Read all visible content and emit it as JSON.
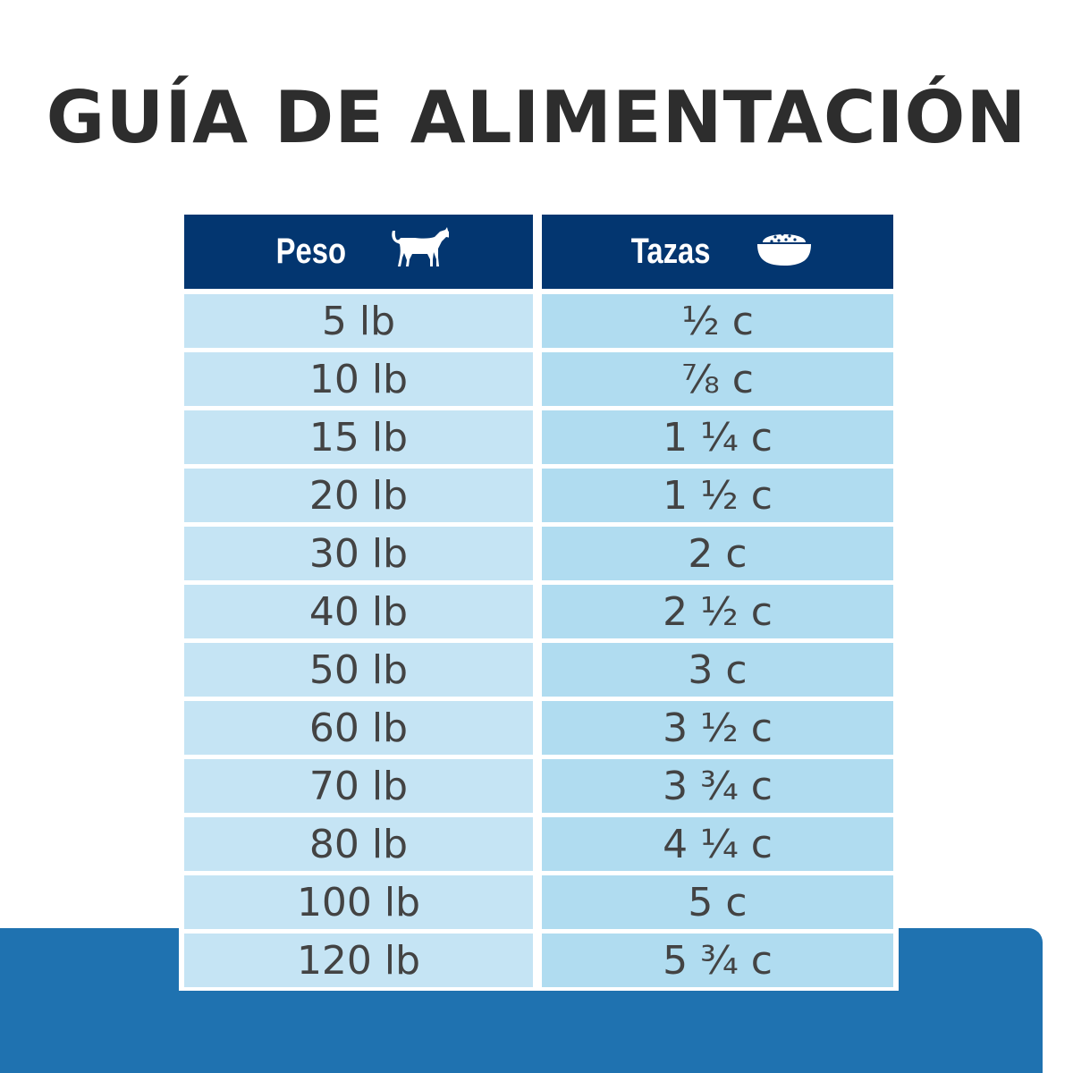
{
  "title": "GUÍA DE ALIMENTACIÓN",
  "colors": {
    "header": "#033670",
    "weight_cell": "#c5e4f4",
    "cups_cell": "#b0dcf0",
    "band": "#1f72b0",
    "text": "#434343"
  },
  "table": {
    "headers": [
      {
        "label": "Peso",
        "icon": "dog-icon"
      },
      {
        "label": "Tazas",
        "icon": "food-bowl-icon"
      }
    ],
    "rows": [
      {
        "weight": "5 lb",
        "cups": "½ c"
      },
      {
        "weight": "10 lb",
        "cups": "⅞ c"
      },
      {
        "weight": "15 lb",
        "cups": "1 ¼ c"
      },
      {
        "weight": "20 lb",
        "cups": "1 ½ c"
      },
      {
        "weight": "30 lb",
        "cups": "2 c"
      },
      {
        "weight": "40 lb",
        "cups": "2 ½ c"
      },
      {
        "weight": "50 lb",
        "cups": "3 c"
      },
      {
        "weight": "60 lb",
        "cups": "3 ½ c"
      },
      {
        "weight": "70 lb",
        "cups": "3 ¾ c"
      },
      {
        "weight": "80 lb",
        "cups": "4 ¼ c"
      },
      {
        "weight": "100 lb",
        "cups": "5 c"
      },
      {
        "weight": "120 lb",
        "cups": "5 ¾ c"
      }
    ]
  }
}
